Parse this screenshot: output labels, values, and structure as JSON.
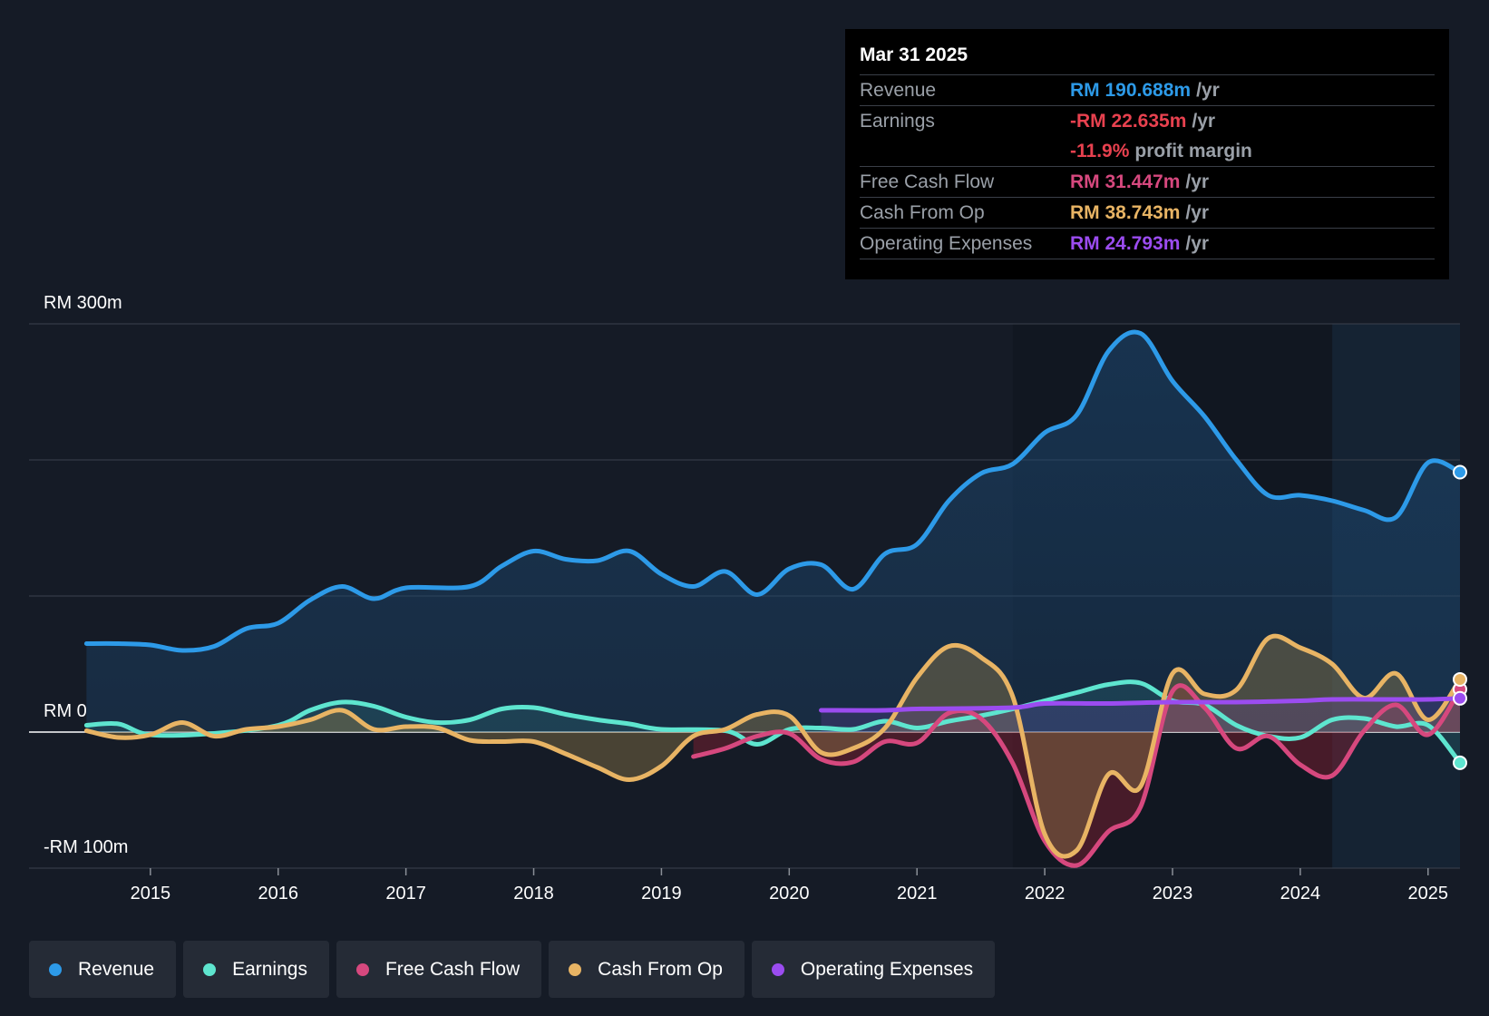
{
  "tooltip": {
    "date": "Mar 31 2025",
    "rows": [
      {
        "label": "Revenue",
        "value": "RM 190.688m",
        "unit": "/yr",
        "color": "#2d9ae8"
      },
      {
        "label": "Earnings",
        "value": "-RM 22.635m",
        "unit": "/yr",
        "color": "#e8414f"
      },
      {
        "label": "",
        "value": "-11.9%",
        "unit": "profit margin",
        "color": "#e8414f"
      },
      {
        "label": "Free Cash Flow",
        "value": "RM 31.447m",
        "unit": "/yr",
        "color": "#d6487e"
      },
      {
        "label": "Cash From Op",
        "value": "RM 38.743m",
        "unit": "/yr",
        "color": "#e8b464"
      },
      {
        "label": "Operating Expenses",
        "value": "RM 24.793m",
        "unit": "/yr",
        "color": "#9b4cf0"
      }
    ]
  },
  "legend": [
    {
      "label": "Revenue",
      "color": "#2d9ae8"
    },
    {
      "label": "Earnings",
      "color": "#5ee5cf"
    },
    {
      "label": "Free Cash Flow",
      "color": "#d6487e"
    },
    {
      "label": "Cash From Op",
      "color": "#e8b464"
    },
    {
      "label": "Operating Expenses",
      "color": "#9b4cf0"
    }
  ],
  "chart_data": {
    "type": "line",
    "title": "",
    "ylabel": "",
    "y_top_label": "RM 300m",
    "y_zero_label": "RM 0",
    "y_bottom_label": "-RM 100m",
    "ylim": [
      -100,
      300
    ],
    "xlim": [
      2014.05,
      2025.25
    ],
    "x_ticks": [
      "2015",
      "2016",
      "2017",
      "2018",
      "2019",
      "2020",
      "2021",
      "2022",
      "2023",
      "2024",
      "2025"
    ],
    "series": [
      {
        "name": "Revenue",
        "color": "#2d9ae8",
        "points": [
          [
            2014.5,
            65
          ],
          [
            2014.75,
            65
          ],
          [
            2015.0,
            64
          ],
          [
            2015.25,
            60
          ],
          [
            2015.5,
            63
          ],
          [
            2015.75,
            76
          ],
          [
            2016.0,
            80
          ],
          [
            2016.25,
            97
          ],
          [
            2016.5,
            107
          ],
          [
            2016.75,
            98
          ],
          [
            2017.0,
            106
          ],
          [
            2017.5,
            107
          ],
          [
            2017.75,
            122
          ],
          [
            2018.0,
            133
          ],
          [
            2018.25,
            127
          ],
          [
            2018.5,
            126
          ],
          [
            2018.75,
            133
          ],
          [
            2019.0,
            116
          ],
          [
            2019.25,
            107
          ],
          [
            2019.5,
            118
          ],
          [
            2019.75,
            101
          ],
          [
            2020.0,
            120
          ],
          [
            2020.25,
            123
          ],
          [
            2020.5,
            105
          ],
          [
            2020.75,
            131
          ],
          [
            2021.0,
            138
          ],
          [
            2021.25,
            170
          ],
          [
            2021.5,
            190
          ],
          [
            2021.75,
            197
          ],
          [
            2022.0,
            220
          ],
          [
            2022.25,
            233
          ],
          [
            2022.5,
            280
          ],
          [
            2022.75,
            293
          ],
          [
            2023.0,
            258
          ],
          [
            2023.25,
            232
          ],
          [
            2023.5,
            200
          ],
          [
            2023.75,
            174
          ],
          [
            2024.0,
            174
          ],
          [
            2024.25,
            170
          ],
          [
            2024.5,
            163
          ],
          [
            2024.75,
            158
          ],
          [
            2025.0,
            198
          ],
          [
            2025.25,
            191
          ]
        ]
      },
      {
        "name": "Earnings",
        "color": "#5ee5cf",
        "points": [
          [
            2014.5,
            5
          ],
          [
            2014.75,
            6
          ],
          [
            2015.0,
            -2
          ],
          [
            2015.5,
            -1
          ],
          [
            2016.0,
            5
          ],
          [
            2016.25,
            16
          ],
          [
            2016.5,
            22
          ],
          [
            2016.75,
            19
          ],
          [
            2017.0,
            11
          ],
          [
            2017.25,
            7
          ],
          [
            2017.5,
            9
          ],
          [
            2017.75,
            17
          ],
          [
            2018.0,
            18
          ],
          [
            2018.25,
            13
          ],
          [
            2018.5,
            9
          ],
          [
            2018.75,
            6
          ],
          [
            2019.0,
            2
          ],
          [
            2019.5,
            1
          ],
          [
            2019.75,
            -9
          ],
          [
            2020.0,
            2
          ],
          [
            2020.25,
            3
          ],
          [
            2020.5,
            2
          ],
          [
            2020.75,
            8
          ],
          [
            2021.0,
            3
          ],
          [
            2021.25,
            8
          ],
          [
            2021.5,
            12
          ],
          [
            2021.75,
            17
          ],
          [
            2022.0,
            23
          ],
          [
            2022.25,
            29
          ],
          [
            2022.5,
            35
          ],
          [
            2022.75,
            36
          ],
          [
            2023.0,
            23
          ],
          [
            2023.25,
            20
          ],
          [
            2023.5,
            5
          ],
          [
            2023.75,
            -3
          ],
          [
            2024.0,
            -4
          ],
          [
            2024.25,
            9
          ],
          [
            2024.5,
            10
          ],
          [
            2024.75,
            4
          ],
          [
            2025.0,
            5
          ],
          [
            2025.25,
            -22.6
          ]
        ]
      },
      {
        "name": "Free Cash Flow",
        "color": "#d6487e",
        "points": [
          [
            2019.25,
            -18
          ],
          [
            2019.5,
            -12
          ],
          [
            2019.75,
            -3
          ],
          [
            2020.0,
            -1
          ],
          [
            2020.25,
            -20
          ],
          [
            2020.5,
            -22
          ],
          [
            2020.75,
            -7
          ],
          [
            2021.0,
            -8
          ],
          [
            2021.25,
            14
          ],
          [
            2021.5,
            10
          ],
          [
            2021.75,
            -23
          ],
          [
            2022.0,
            -80
          ],
          [
            2022.25,
            -98
          ],
          [
            2022.5,
            -73
          ],
          [
            2022.75,
            -55
          ],
          [
            2023.0,
            30
          ],
          [
            2023.25,
            18
          ],
          [
            2023.5,
            -12
          ],
          [
            2023.75,
            -3
          ],
          [
            2024.0,
            -24
          ],
          [
            2024.25,
            -32
          ],
          [
            2024.5,
            1
          ],
          [
            2024.75,
            20
          ],
          [
            2025.0,
            -2
          ],
          [
            2025.25,
            31.4
          ]
        ]
      },
      {
        "name": "Cash From Op",
        "color": "#e8b464",
        "points": [
          [
            2014.5,
            1
          ],
          [
            2014.75,
            -4
          ],
          [
            2015.0,
            -2
          ],
          [
            2015.25,
            7
          ],
          [
            2015.5,
            -3
          ],
          [
            2015.75,
            2
          ],
          [
            2016.0,
            4
          ],
          [
            2016.25,
            9
          ],
          [
            2016.5,
            16
          ],
          [
            2016.75,
            2
          ],
          [
            2017.0,
            4
          ],
          [
            2017.25,
            3
          ],
          [
            2017.5,
            -6
          ],
          [
            2017.75,
            -7
          ],
          [
            2018.0,
            -7
          ],
          [
            2018.25,
            -16
          ],
          [
            2018.5,
            -26
          ],
          [
            2018.75,
            -35
          ],
          [
            2019.0,
            -25
          ],
          [
            2019.25,
            -3
          ],
          [
            2019.5,
            2
          ],
          [
            2019.75,
            13
          ],
          [
            2020.0,
            12
          ],
          [
            2020.25,
            -15
          ],
          [
            2020.5,
            -12
          ],
          [
            2020.75,
            3
          ],
          [
            2021.0,
            40
          ],
          [
            2021.25,
            63
          ],
          [
            2021.5,
            55
          ],
          [
            2021.75,
            26
          ],
          [
            2022.0,
            -75
          ],
          [
            2022.25,
            -87
          ],
          [
            2022.5,
            -31
          ],
          [
            2022.75,
            -40
          ],
          [
            2023.0,
            43
          ],
          [
            2023.25,
            28
          ],
          [
            2023.5,
            31
          ],
          [
            2023.75,
            69
          ],
          [
            2024.0,
            62
          ],
          [
            2024.25,
            50
          ],
          [
            2024.5,
            25
          ],
          [
            2024.75,
            43
          ],
          [
            2025.0,
            9
          ],
          [
            2025.25,
            38.7
          ]
        ]
      },
      {
        "name": "Operating Expenses",
        "color": "#9b4cf0",
        "points": [
          [
            2020.25,
            16
          ],
          [
            2020.75,
            16
          ],
          [
            2021.0,
            17
          ],
          [
            2021.75,
            18
          ],
          [
            2022.0,
            21
          ],
          [
            2022.5,
            21
          ],
          [
            2023.0,
            22
          ],
          [
            2023.5,
            22
          ],
          [
            2024.0,
            23
          ],
          [
            2024.25,
            24
          ],
          [
            2024.75,
            24
          ],
          [
            2025.0,
            24
          ],
          [
            2025.25,
            24.8
          ]
        ]
      }
    ]
  }
}
